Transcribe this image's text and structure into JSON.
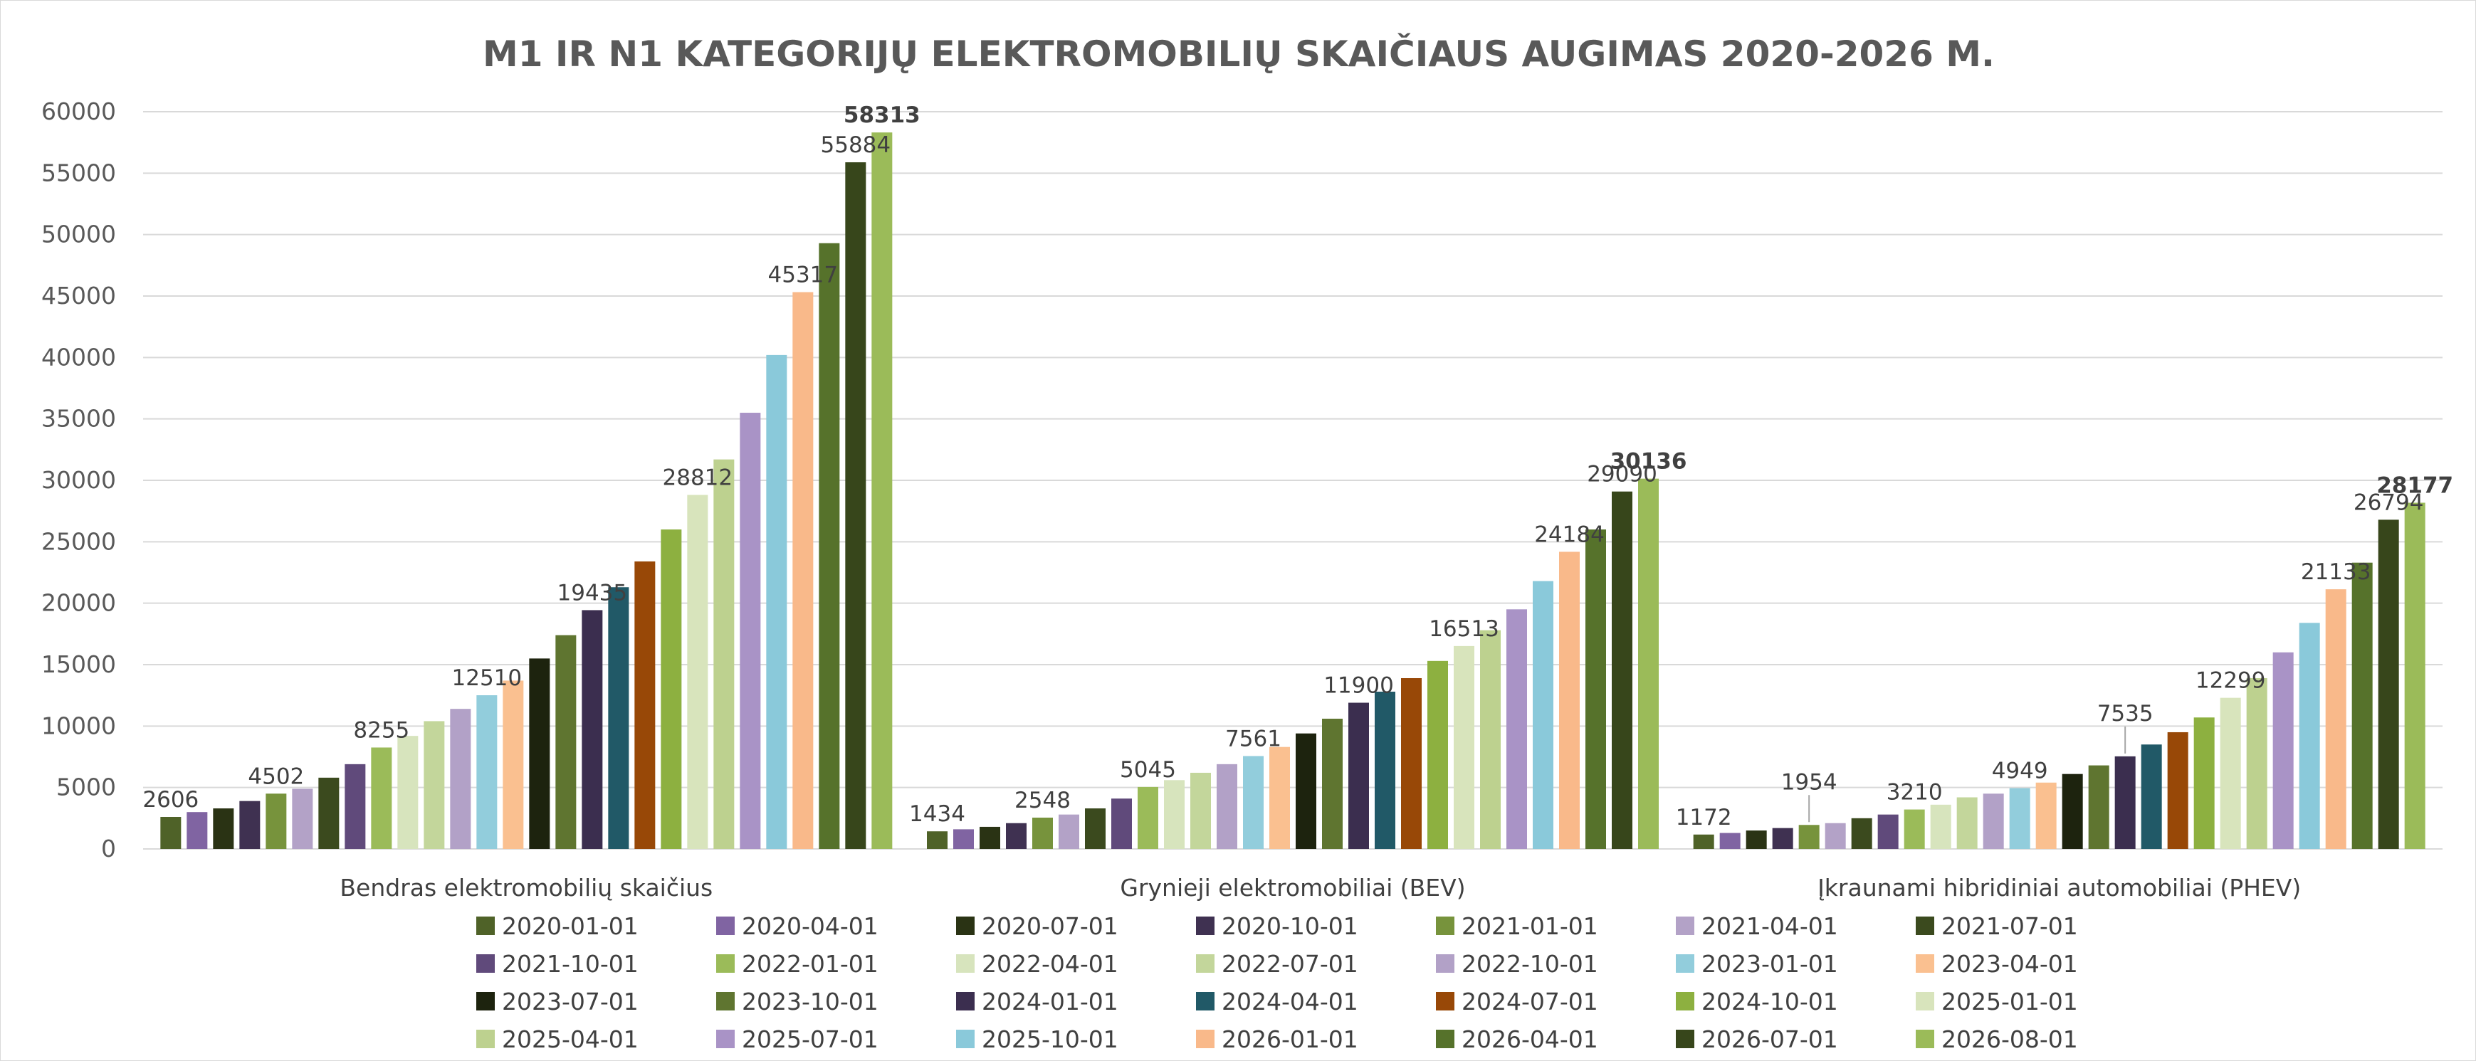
{
  "chart_data": {
    "type": "bar",
    "title": "M1 IR N1 KATEGORIJŲ ELEKTROMOBILIŲ SKAIČIAUS AUGIMAS 2020-2026 M.",
    "xlabel": "",
    "ylabel": "",
    "ylim": [
      0,
      60000
    ],
    "yticks": [
      0,
      5000,
      10000,
      15000,
      20000,
      25000,
      30000,
      35000,
      40000,
      45000,
      50000,
      55000,
      60000
    ],
    "grid": true,
    "legend_position": "bottom",
    "categories": [
      "Bendras elektromobilių skaičius",
      "Grynieji elektromobiliai (BEV)",
      "Įkraunami hibridiniai automobiliai (PHEV)"
    ],
    "series": [
      {
        "name": "2020-01-01",
        "color": "#4f6228",
        "values": [
          2606,
          1434,
          1172
        ]
      },
      {
        "name": "2020-04-01",
        "color": "#8064a2",
        "values": [
          3000,
          1600,
          1300
        ]
      },
      {
        "name": "2020-07-01",
        "color": "#2a3314",
        "values": [
          3300,
          1800,
          1500
        ]
      },
      {
        "name": "2020-10-01",
        "color": "#3f3151",
        "values": [
          3900,
          2100,
          1700
        ]
      },
      {
        "name": "2021-01-01",
        "color": "#77933c",
        "values": [
          4502,
          2548,
          1954
        ]
      },
      {
        "name": "2021-04-01",
        "color": "#b3a2c7",
        "values": [
          4900,
          2800,
          2100
        ]
      },
      {
        "name": "2021-07-01",
        "color": "#3b4a1e",
        "values": [
          5800,
          3300,
          2500
        ]
      },
      {
        "name": "2021-10-01",
        "color": "#604a7b",
        "values": [
          6900,
          4100,
          2800
        ]
      },
      {
        "name": "2022-01-01",
        "color": "#9bbb59",
        "values": [
          8255,
          5045,
          3210
        ]
      },
      {
        "name": "2022-04-01",
        "color": "#d7e4bd",
        "values": [
          9200,
          5600,
          3600
        ]
      },
      {
        "name": "2022-07-01",
        "color": "#c3d69b",
        "values": [
          10400,
          6200,
          4200
        ]
      },
      {
        "name": "2022-10-01",
        "color": "#b2a1c7",
        "values": [
          11400,
          6900,
          4500
        ]
      },
      {
        "name": "2023-01-01",
        "color": "#92cddc",
        "values": [
          12510,
          7561,
          4949
        ]
      },
      {
        "name": "2023-04-01",
        "color": "#fac090",
        "values": [
          13700,
          8300,
          5400
        ]
      },
      {
        "name": "2023-07-01",
        "color": "#1d230e",
        "values": [
          15500,
          9400,
          6100
        ]
      },
      {
        "name": "2023-10-01",
        "color": "#5f7530",
        "values": [
          17400,
          10600,
          6800
        ]
      },
      {
        "name": "2024-01-01",
        "color": "#3b2e4f",
        "values": [
          19435,
          11900,
          7535
        ]
      },
      {
        "name": "2024-04-01",
        "color": "#215967",
        "values": [
          21300,
          12800,
          8500
        ]
      },
      {
        "name": "2024-07-01",
        "color": "#984807",
        "values": [
          23400,
          13900,
          9500
        ]
      },
      {
        "name": "2024-10-01",
        "color": "#8db040",
        "values": [
          26000,
          15300,
          10700
        ]
      },
      {
        "name": "2025-01-01",
        "color": "#d8e4bc",
        "values": [
          28812,
          16513,
          12299
        ]
      },
      {
        "name": "2025-04-01",
        "color": "#bdd18f",
        "values": [
          31700,
          17800,
          13900
        ]
      },
      {
        "name": "2025-07-01",
        "color": "#a993c6",
        "values": [
          35500,
          19500,
          16000
        ]
      },
      {
        "name": "2025-10-01",
        "color": "#8ac9da",
        "values": [
          40200,
          21800,
          18400
        ]
      },
      {
        "name": "2026-01-01",
        "color": "#f9b98a",
        "values": [
          45317,
          24184,
          21133
        ]
      },
      {
        "name": "2026-04-01",
        "color": "#56722b",
        "values": [
          49300,
          26000,
          23300
        ]
      },
      {
        "name": "2026-07-01",
        "color": "#37461b",
        "values": [
          55884,
          29090,
          26794
        ]
      },
      {
        "name": "2026-08-01",
        "color": "#9bbb59",
        "values": [
          58313,
          30136,
          28177
        ]
      }
    ],
    "data_labels": [
      {
        "category": 0,
        "series": 0,
        "text": "2606",
        "bold": false
      },
      {
        "category": 0,
        "series": 4,
        "text": "4502",
        "bold": false
      },
      {
        "category": 0,
        "series": 8,
        "text": "8255",
        "bold": false
      },
      {
        "category": 0,
        "series": 12,
        "text": "12510",
        "bold": false
      },
      {
        "category": 0,
        "series": 16,
        "text": "19435",
        "bold": false
      },
      {
        "category": 0,
        "series": 20,
        "text": "28812",
        "bold": false
      },
      {
        "category": 0,
        "series": 24,
        "text": "45317",
        "bold": false
      },
      {
        "category": 0,
        "series": 26,
        "text": "55884",
        "bold": false
      },
      {
        "category": 0,
        "series": 27,
        "text": "58313",
        "bold": true
      },
      {
        "category": 1,
        "series": 0,
        "text": "1434",
        "bold": false
      },
      {
        "category": 1,
        "series": 4,
        "text": "2548",
        "bold": false
      },
      {
        "category": 1,
        "series": 8,
        "text": "5045",
        "bold": false
      },
      {
        "category": 1,
        "series": 12,
        "text": "7561",
        "bold": false
      },
      {
        "category": 1,
        "series": 16,
        "text": "11900",
        "bold": false
      },
      {
        "category": 1,
        "series": 20,
        "text": "16513",
        "bold": false
      },
      {
        "category": 1,
        "series": 24,
        "text": "24184",
        "bold": false
      },
      {
        "category": 1,
        "series": 26,
        "text": "29090",
        "bold": false
      },
      {
        "category": 1,
        "series": 27,
        "text": "30136",
        "bold": true
      },
      {
        "category": 2,
        "series": 0,
        "text": "1172",
        "bold": false
      },
      {
        "category": 2,
        "series": 4,
        "text": "1954",
        "bold": false,
        "leader": true
      },
      {
        "category": 2,
        "series": 8,
        "text": "3210",
        "bold": false
      },
      {
        "category": 2,
        "series": 12,
        "text": "4949",
        "bold": false
      },
      {
        "category": 2,
        "series": 16,
        "text": "7535",
        "bold": false,
        "leader": true
      },
      {
        "category": 2,
        "series": 20,
        "text": "12299",
        "bold": false
      },
      {
        "category": 2,
        "series": 24,
        "text": "21133",
        "bold": false
      },
      {
        "category": 2,
        "series": 26,
        "text": "26794",
        "bold": false
      },
      {
        "category": 2,
        "series": 27,
        "text": "28177",
        "bold": true
      }
    ]
  }
}
